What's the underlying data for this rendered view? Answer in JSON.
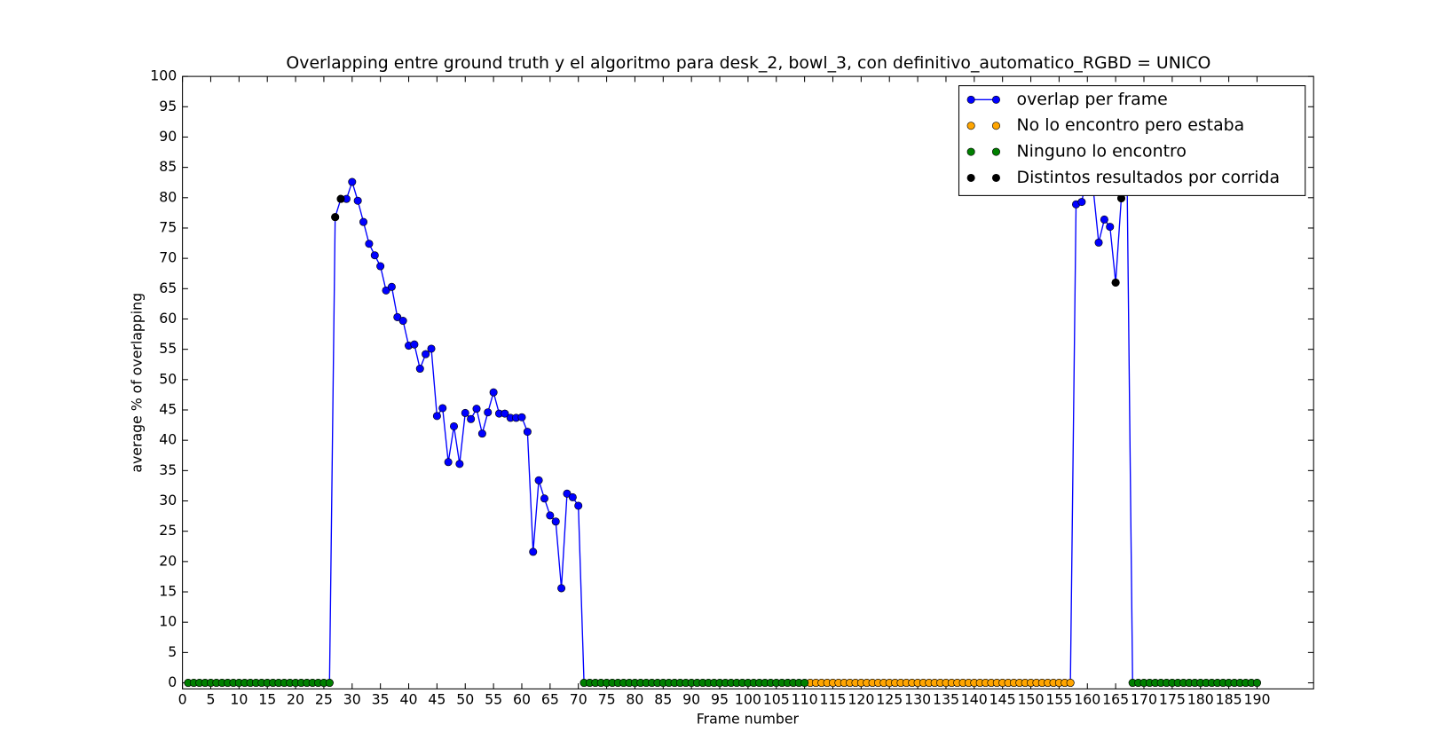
{
  "chart_data": {
    "type": "line",
    "title": "Overlapping entre ground truth y el algoritmo para desk_2, bowl_3, con definitivo_automatico_RGBD = UNICO",
    "x_label": "Frame number",
    "y_label": "average % of overlapping",
    "xlim": [
      0,
      200
    ],
    "ylim": [
      -1,
      100
    ],
    "xticks": [
      0,
      5,
      10,
      15,
      20,
      25,
      30,
      35,
      40,
      45,
      50,
      55,
      60,
      65,
      70,
      75,
      80,
      85,
      90,
      95,
      100,
      105,
      110,
      115,
      120,
      125,
      130,
      135,
      140,
      145,
      150,
      155,
      160,
      165,
      170,
      175,
      180,
      185,
      190
    ],
    "yticks": [
      0,
      5,
      10,
      15,
      20,
      25,
      30,
      35,
      40,
      45,
      50,
      55,
      60,
      65,
      70,
      75,
      80,
      85,
      90,
      95,
      100
    ],
    "legend": "upper right",
    "series": [
      {
        "name": "overlap per frame",
        "color": "#0000ff",
        "linestyle": "solid",
        "x": [
          1,
          2,
          3,
          4,
          5,
          6,
          7,
          8,
          9,
          10,
          11,
          12,
          13,
          14,
          15,
          16,
          17,
          18,
          19,
          20,
          21,
          22,
          23,
          24,
          25,
          26,
          27,
          28,
          29,
          30,
          31,
          32,
          33,
          34,
          35,
          36,
          37,
          38,
          39,
          40,
          41,
          42,
          43,
          44,
          45,
          46,
          47,
          48,
          49,
          50,
          51,
          52,
          53,
          54,
          55,
          56,
          57,
          58,
          59,
          60,
          61,
          62,
          63,
          64,
          65,
          66,
          67,
          68,
          69,
          70,
          71,
          72,
          73,
          74,
          75,
          76,
          77,
          78,
          79,
          80,
          81,
          82,
          83,
          84,
          85,
          86,
          87,
          88,
          89,
          90,
          91,
          92,
          93,
          94,
          95,
          96,
          97,
          98,
          99,
          100,
          101,
          102,
          103,
          104,
          105,
          106,
          107,
          108,
          109,
          110,
          111,
          112,
          113,
          114,
          115,
          116,
          117,
          118,
          119,
          120,
          121,
          122,
          123,
          124,
          125,
          126,
          127,
          128,
          129,
          130,
          131,
          132,
          133,
          134,
          135,
          136,
          137,
          138,
          139,
          140,
          141,
          142,
          143,
          144,
          145,
          146,
          147,
          148,
          149,
          150,
          151,
          152,
          153,
          154,
          155,
          156,
          157,
          158,
          159,
          160,
          161,
          162,
          163,
          164,
          165,
          166,
          167,
          168,
          169,
          170,
          171,
          172,
          173,
          174,
          175,
          176,
          177,
          178,
          179,
          180,
          181,
          182,
          183,
          184,
          185,
          186,
          187,
          188,
          189,
          190
        ],
        "values": [
          0,
          0,
          0,
          0,
          0,
          0,
          0,
          0,
          0,
          0,
          0,
          0,
          0,
          0,
          0,
          0,
          0,
          0,
          0,
          0,
          0,
          0,
          0,
          0,
          0,
          0,
          76.8,
          79.8,
          79.8,
          82.6,
          79.5,
          76,
          72.4,
          70.5,
          68.7,
          64.7,
          65.3,
          60.3,
          59.7,
          55.6,
          55.8,
          51.8,
          54.2,
          55.1,
          44,
          45.3,
          36.4,
          42.3,
          36.1,
          44.5,
          43.5,
          45.2,
          41.1,
          44.6,
          47.9,
          44.4,
          44.4,
          43.7,
          43.7,
          43.8,
          41.4,
          21.6,
          33.4,
          30.4,
          27.6,
          26.6,
          15.6,
          31.2,
          30.6,
          29.2,
          0,
          0,
          0,
          0,
          0,
          0,
          0,
          0,
          0,
          0,
          0,
          0,
          0,
          0,
          0,
          0,
          0,
          0,
          0,
          0,
          0,
          0,
          0,
          0,
          0,
          0,
          0,
          0,
          0,
          0,
          0,
          0,
          0,
          0,
          0,
          0,
          0,
          0,
          0,
          0,
          0,
          0,
          0,
          0,
          0,
          0,
          0,
          0,
          0,
          0,
          0,
          0,
          0,
          0,
          0,
          0,
          0,
          0,
          0,
          0,
          0,
          0,
          0,
          0,
          0,
          0,
          0,
          0,
          0,
          0,
          0,
          0,
          0,
          0,
          0,
          0,
          0,
          0,
          0,
          0,
          0,
          0,
          0,
          0,
          0,
          0,
          0,
          78.9,
          79.3,
          84,
          81.8,
          72.6,
          76.4,
          75.2,
          66,
          79.9,
          85,
          0,
          0,
          0,
          0,
          0,
          0,
          0,
          0,
          0,
          0,
          0,
          0,
          0,
          0,
          0,
          0,
          0,
          0,
          0,
          0,
          0,
          0,
          0
        ]
      },
      {
        "name": "No lo encontro pero estaba",
        "color": "#ffa500",
        "linestyle": "none",
        "x": [
          111,
          112,
          113,
          114,
          115,
          116,
          117,
          118,
          119,
          120,
          121,
          122,
          123,
          124,
          125,
          126,
          127,
          128,
          129,
          130,
          131,
          132,
          133,
          134,
          135,
          136,
          137,
          138,
          139,
          140,
          141,
          142,
          143,
          144,
          145,
          146,
          147,
          148,
          149,
          150,
          151,
          152,
          153,
          154,
          155,
          156,
          157
        ],
        "values": [
          0,
          0,
          0,
          0,
          0,
          0,
          0,
          0,
          0,
          0,
          0,
          0,
          0,
          0,
          0,
          0,
          0,
          0,
          0,
          0,
          0,
          0,
          0,
          0,
          0,
          0,
          0,
          0,
          0,
          0,
          0,
          0,
          0,
          0,
          0,
          0,
          0,
          0,
          0,
          0,
          0,
          0,
          0,
          0,
          0,
          0,
          0
        ]
      },
      {
        "name": "Ninguno lo encontro",
        "color": "#008000",
        "linestyle": "none",
        "x": [
          1,
          2,
          3,
          4,
          5,
          6,
          7,
          8,
          9,
          10,
          11,
          12,
          13,
          14,
          15,
          16,
          17,
          18,
          19,
          20,
          21,
          22,
          23,
          24,
          25,
          26,
          71,
          72,
          73,
          74,
          75,
          76,
          77,
          78,
          79,
          80,
          81,
          82,
          83,
          84,
          85,
          86,
          87,
          88,
          89,
          90,
          91,
          92,
          93,
          94,
          95,
          96,
          97,
          98,
          99,
          100,
          101,
          102,
          103,
          104,
          105,
          106,
          107,
          108,
          109,
          110,
          168,
          169,
          170,
          171,
          172,
          173,
          174,
          175,
          176,
          177,
          178,
          179,
          180,
          181,
          182,
          183,
          184,
          185,
          186,
          187,
          188,
          189,
          190
        ],
        "values": [
          0,
          0,
          0,
          0,
          0,
          0,
          0,
          0,
          0,
          0,
          0,
          0,
          0,
          0,
          0,
          0,
          0,
          0,
          0,
          0,
          0,
          0,
          0,
          0,
          0,
          0,
          0,
          0,
          0,
          0,
          0,
          0,
          0,
          0,
          0,
          0,
          0,
          0,
          0,
          0,
          0,
          0,
          0,
          0,
          0,
          0,
          0,
          0,
          0,
          0,
          0,
          0,
          0,
          0,
          0,
          0,
          0,
          0,
          0,
          0,
          0,
          0,
          0,
          0,
          0,
          0,
          0,
          0,
          0,
          0,
          0,
          0,
          0,
          0,
          0,
          0,
          0,
          0,
          0,
          0,
          0,
          0,
          0,
          0,
          0,
          0,
          0,
          0,
          0
        ]
      },
      {
        "name": "Distintos resultados por corrida",
        "color": "#000000",
        "linestyle": "none",
        "x": [
          27,
          28,
          165,
          166
        ],
        "values": [
          76.8,
          79.8,
          66,
          79.9
        ]
      }
    ]
  }
}
